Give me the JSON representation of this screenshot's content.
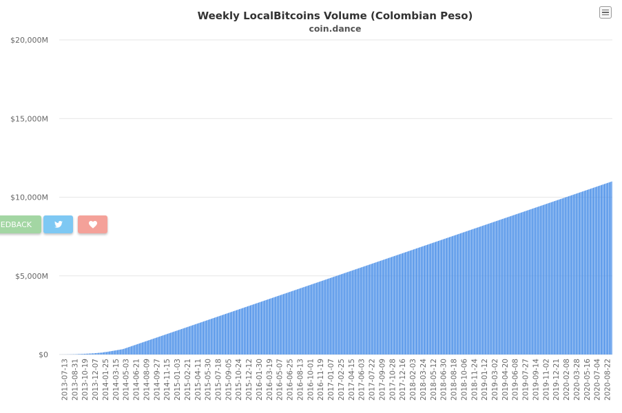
{
  "header": {
    "title": "Weekly LocalBitcoins Volume (Colombian Peso)",
    "subtitle": "coin.dance"
  },
  "buttons": {
    "feedback_label": "EDBACK",
    "twitter_icon": "twitter-icon",
    "heart_icon": "heart-icon",
    "menu_icon": "hamburger-menu-icon"
  },
  "colors": {
    "bar": "#4a8fe8",
    "grid": "#e6e6e6",
    "axis_text": "#666666",
    "feedback": "#a3d6a3",
    "twitter": "#7ec8f3",
    "heart": "#f4a199"
  },
  "chart_data": {
    "type": "bar",
    "title": "Weekly LocalBitcoins Volume (Colombian Peso)",
    "subtitle": "coin.dance",
    "ylim": [
      0,
      20000
    ],
    "y_unit": "M COP",
    "y_ticks": [
      0,
      5000,
      10000,
      15000,
      20000
    ],
    "y_tick_labels": [
      "$0",
      "$5,000M",
      "$10,000M",
      "$15,000M",
      "$20,000M"
    ],
    "x_tick_labels": [
      "2013-07-13",
      "2013-08-31",
      "2013-10-19",
      "2013-12-07",
      "2014-01-25",
      "2014-03-15",
      "2014-05-03",
      "2014-06-21",
      "2014-08-09",
      "2014-09-27",
      "2014-11-15",
      "2015-01-03",
      "2015-02-21",
      "2015-04-11",
      "2015-05-30",
      "2015-07-18",
      "2015-09-05",
      "2015-10-24",
      "2015-12-12",
      "2016-01-30",
      "2016-03-19",
      "2016-05-07",
      "2016-06-25",
      "2016-08-13",
      "2016-10-01",
      "2016-11-19",
      "2017-01-07",
      "2017-02-25",
      "2017-04-15",
      "2017-06-03",
      "2017-07-22",
      "2017-09-09",
      "2017-10-28",
      "2017-12-16",
      "2018-02-03",
      "2018-03-24",
      "2018-05-12",
      "2018-06-30",
      "2018-08-18",
      "2018-10-06",
      "2018-11-24",
      "2019-01-12",
      "2019-03-02",
      "2019-04-20",
      "2019-06-08",
      "2019-07-27",
      "2019-09-14",
      "2019-11-02",
      "2019-12-21",
      "2020-02-08",
      "2020-03-28",
      "2020-05-16",
      "2020-07-04",
      "2020-08-22"
    ],
    "values": [
      2,
      3,
      2,
      4,
      3,
      5,
      4,
      6,
      5,
      8,
      6,
      10,
      8,
      12,
      10,
      15,
      12,
      18,
      15,
      20,
      25,
      30,
      28,
      35,
      30,
      40,
      35,
      45,
      42,
      50,
      55,
      48,
      60,
      65,
      58,
      70,
      75,
      68,
      80,
      85,
      90,
      95,
      100,
      110,
      105,
      120,
      115,
      130,
      140,
      150,
      160,
      155,
      170,
      180,
      190,
      200,
      210,
      220,
      230,
      240,
      250,
      260,
      270,
      280,
      290,
      300,
      310,
      320,
      330,
      340,
      360,
      380,
      400,
      420,
      440,
      460,
      480,
      500,
      520,
      540,
      560,
      580,
      600,
      620,
      640,
      660,
      680,
      700,
      720,
      740,
      760,
      780,
      800,
      820,
      840,
      860,
      880,
      900,
      920,
      940,
      960,
      980,
      1000,
      1020,
      1040,
      1060,
      1080,
      1100,
      1120,
      1140,
      1160,
      1180,
      1200,
      1220,
      1240,
      1260,
      1280,
      1300,
      1320,
      1340,
      1360,
      1380,
      1400,
      1420,
      1440,
      1460,
      1480,
      1500,
      1520,
      1540,
      1560,
      1580,
      1600,
      1620,
      1640,
      1660,
      1680,
      1700,
      1720,
      1740,
      1760,
      1780,
      1800,
      1820,
      1840,
      1860,
      1880,
      1900,
      1920,
      1940,
      1960,
      1980,
      2000,
      2020,
      2040,
      2060,
      2080,
      2100,
      2120,
      2140,
      2160,
      2180,
      2200,
      2220,
      2240,
      2260,
      2280,
      2300,
      2320,
      2340,
      2360,
      2380,
      2400,
      2420,
      2440,
      2460,
      2480,
      2500,
      2520,
      2540,
      2560,
      2580,
      2600,
      2620,
      2640,
      2660,
      2680,
      2700,
      2720,
      2740,
      2760,
      2780,
      2800,
      2820,
      2840,
      2860,
      2880,
      2900,
      2920,
      2940,
      2960,
      2980,
      3000,
      3020,
      3040,
      3060,
      3080,
      3100,
      3120,
      3140,
      3160,
      3180,
      3200,
      3220,
      3240,
      3260,
      3280,
      3300,
      3320,
      3340,
      3360,
      3380,
      3400,
      3420,
      3440,
      3460,
      3480,
      3500,
      3520,
      3540,
      3560,
      3580,
      3600,
      3620,
      3640,
      3660,
      3680,
      3700,
      3720,
      3740,
      3760,
      3780,
      3800,
      3820,
      3840,
      3860,
      3880,
      3900,
      3920,
      3940,
      3960,
      3980,
      4000,
      4020,
      4040,
      4060,
      4080,
      4100,
      4120,
      4140,
      4160,
      4180,
      4200,
      4220,
      4240,
      4260,
      4280,
      4300,
      4320,
      4340,
      4360,
      4380,
      4400,
      4420,
      4440,
      4460,
      4480,
      4500,
      4520,
      4540,
      4560,
      4580,
      4600,
      4620,
      4640,
      4660,
      4680,
      4700,
      4720,
      4740,
      4760,
      4780,
      4800,
      4820,
      4840,
      4860,
      4880,
      4900,
      4920,
      4940,
      4960,
      4980,
      5000,
      5020,
      5040,
      5060,
      5080,
      5100,
      5120,
      5140,
      5160,
      5180,
      5200,
      5220,
      5240,
      5260,
      5280,
      5300,
      5320,
      5340,
      5360,
      5380,
      5400,
      5420,
      5440,
      5460,
      5480,
      5500,
      5520,
      5540,
      5560,
      5580,
      5600,
      5620,
      5640,
      5660,
      5680,
      5700,
      5720,
      5740,
      5760,
      5780,
      5800,
      5820,
      5840,
      5860,
      5880,
      5900,
      5920,
      5940,
      5960,
      5980,
      6000,
      6020,
      6040,
      6060,
      6080,
      6100,
      6120,
      6140,
      6160,
      6180,
      6200,
      6220,
      6240,
      6260,
      6280,
      6300,
      6320,
      6340,
      6360,
      6380,
      6400,
      6420,
      6440,
      6460,
      6480,
      6500,
      6520,
      6540,
      6560,
      6580,
      6600,
      6620,
      6640,
      6660,
      6680,
      6700,
      6720,
      6740,
      6760,
      6780,
      6800,
      6820,
      6840,
      6860,
      6880,
      6900,
      6920,
      6940,
      6960,
      6980,
      7000,
      7020,
      7040,
      7060,
      7080,
      7100,
      7120,
      7140,
      7160,
      7180,
      7200,
      7220,
      7240,
      7260,
      7280,
      7300,
      7320,
      7340,
      7360,
      7380,
      7400,
      7420,
      7440,
      7460,
      7480,
      7500,
      7520,
      7540,
      7560,
      7580,
      7600,
      7620,
      7640,
      7660,
      7680,
      7700,
      7720,
      7740,
      7760,
      7780,
      7800,
      7820,
      7840,
      7860,
      7880,
      7900,
      7920,
      7940,
      7960,
      7980,
      8000,
      8020,
      8040,
      8060,
      8080,
      8100,
      8120,
      8140,
      8160,
      8180,
      8200,
      8220,
      8240,
      8260,
      8280,
      8300,
      8320,
      8340,
      8360,
      8380,
      8400,
      8420,
      8440,
      8460,
      8480,
      8500,
      8520,
      8540,
      8560,
      8580,
      8600,
      8620,
      8640,
      8660,
      8680,
      8700,
      8720,
      8740,
      8760,
      8780,
      8800,
      8820,
      8840,
      8860,
      8880,
      8900,
      8920,
      8940,
      8960,
      8980,
      9000,
      9020,
      9040,
      9060,
      9080,
      9100,
      9120,
      9140,
      9160,
      9180,
      9200,
      9220,
      9240,
      9260,
      9280,
      9300,
      9320,
      9340,
      9360,
      9380,
      9400,
      9420,
      9440,
      9460,
      9480,
      9500,
      9520,
      9540,
      9560,
      9580,
      9600,
      9620,
      9640,
      9660,
      9680,
      9700,
      9720,
      9740,
      9760,
      9780,
      9800,
      9820,
      9840,
      9860,
      9880,
      9900,
      9920,
      9940,
      9960,
      9980,
      10000,
      10020,
      10040,
      10060,
      10080,
      10100,
      10120,
      10140,
      10160,
      10180,
      10200,
      10220,
      10240,
      10260,
      10280,
      10300,
      10320,
      10340,
      10360,
      10380,
      10400,
      10420,
      10440,
      10460,
      10480,
      10500,
      10520,
      10540,
      10560,
      10580,
      10600,
      10620,
      10640,
      10660,
      10680,
      10700,
      10720,
      10740,
      10760,
      10780,
      10800,
      10820,
      10840,
      10860,
      10880,
      10900,
      10920,
      10940,
      10960,
      10980,
      11000
    ],
    "grid": true,
    "legend": "none"
  }
}
